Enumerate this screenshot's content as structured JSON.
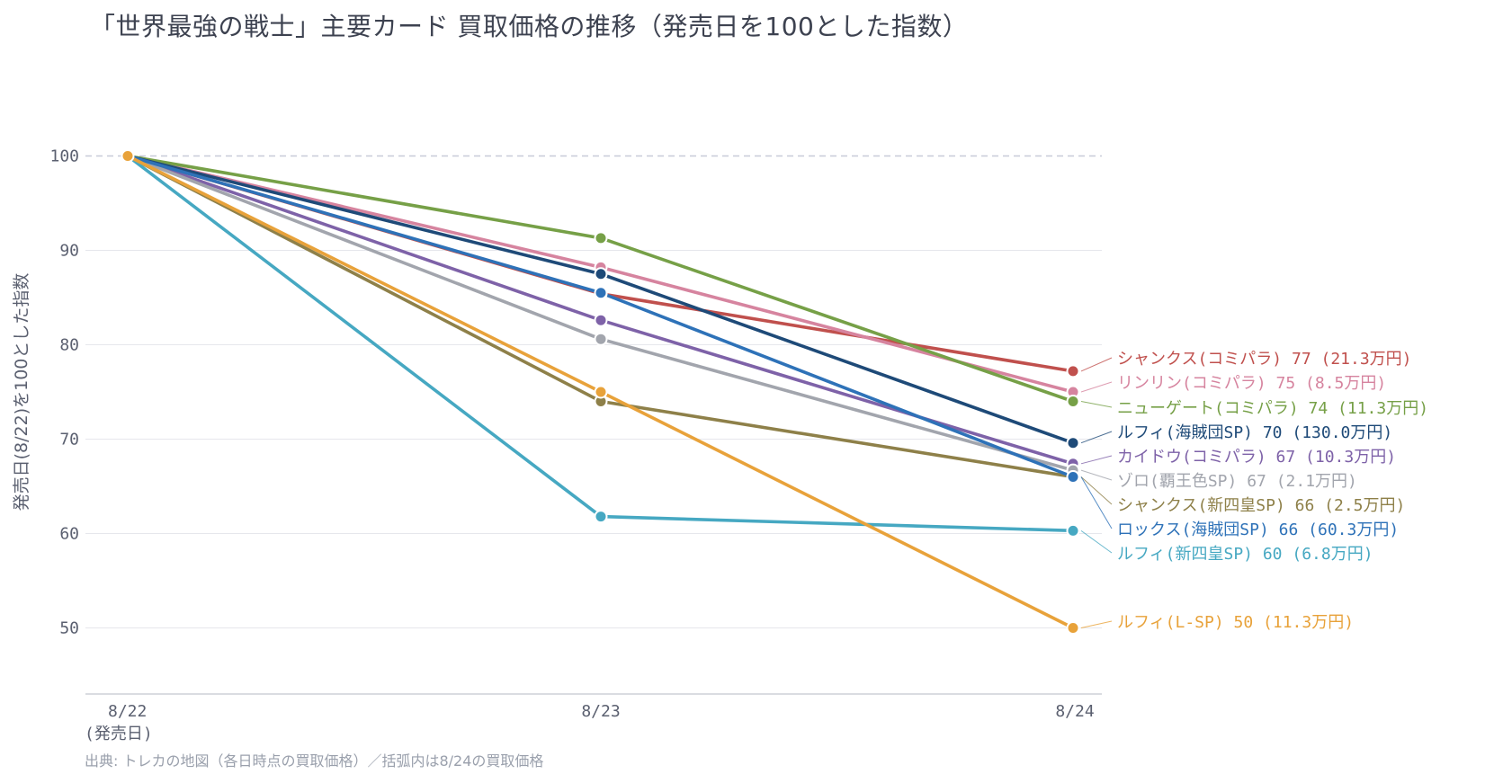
{
  "title": "「世界最強の戦士」主要カード 買取価格の推移（発売日を100とした指数）",
  "source": "出典: トレカの地図（各日時点の買取価格）／括弧内は8/24の買取価格",
  "chart_data": {
    "type": "line",
    "title": "「世界最強の戦士」主要カード 買取価格の推移（発売日を100とした指数）",
    "ylabel": "発売日(8/22)を100とした指数",
    "xlabel": "",
    "categories": [
      "8/22",
      "8/23",
      "8/24"
    ],
    "category_sublabels": [
      "(発売日)",
      "",
      ""
    ],
    "ylim": [
      43,
      107
    ],
    "yticks": [
      50,
      60,
      70,
      80,
      90,
      100
    ],
    "reference_line": 100,
    "grid": true,
    "series": [
      {
        "name": "シャンクス(コミパラ)",
        "values": [
          100,
          85.4,
          77.2
        ],
        "color": "#c0504d",
        "end_label": "77 (21.3万円)"
      },
      {
        "name": "リンリン(コミパラ)",
        "values": [
          100,
          88.2,
          75.0
        ],
        "color": "#d6849f",
        "end_label": "75 (8.5万円)"
      },
      {
        "name": "ニューゲート(コミパラ)",
        "values": [
          100,
          91.3,
          74.0
        ],
        "color": "#76a047",
        "end_label": "74 (11.3万円)"
      },
      {
        "name": "ルフィ(海賊団SP)",
        "values": [
          100,
          87.5,
          69.6
        ],
        "color": "#1e4a78",
        "end_label": "70 (130.0万円)"
      },
      {
        "name": "カイドウ(コミパラ)",
        "values": [
          100,
          82.6,
          67.4
        ],
        "color": "#7e62a8",
        "end_label": "67 (10.3万円)"
      },
      {
        "name": "ゾロ(覇王色SP)",
        "values": [
          100,
          80.6,
          66.7
        ],
        "color": "#a2a5ad",
        "end_label": "67 (2.1万円)"
      },
      {
        "name": "シャンクス(新四皇SP)",
        "values": [
          100,
          74.0,
          66.0
        ],
        "color": "#8e8049",
        "end_label": "66 (2.5万円)"
      },
      {
        "name": "ロックス(海賊団SP)",
        "values": [
          100,
          85.5,
          66.0
        ],
        "color": "#2e72b8",
        "end_label": "66 (60.3万円)"
      },
      {
        "name": "ルフィ(新四皇SP)",
        "values": [
          100,
          61.8,
          60.3
        ],
        "color": "#46a8c2",
        "end_label": "60 (6.8万円)"
      },
      {
        "name": "ルフィ(L-SP)",
        "values": [
          100,
          75.0,
          50.0
        ],
        "color": "#e8a23a",
        "end_label": "50 (11.3万円)"
      }
    ]
  }
}
